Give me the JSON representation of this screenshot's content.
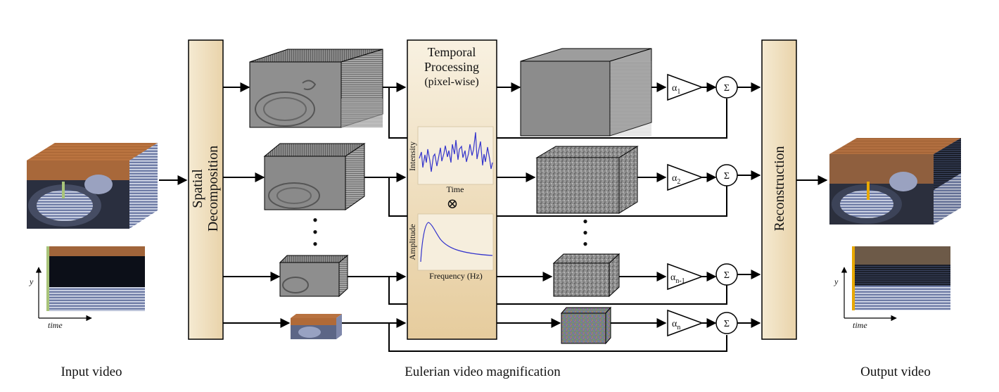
{
  "captions": {
    "input": "Input video",
    "middle": "Eulerian video magnification",
    "output": "Output video"
  },
  "blocks": {
    "spatial_line1": "Spatial",
    "spatial_line2": "Decomposition",
    "temporal_line1": "Temporal",
    "temporal_line2": "Processing",
    "temporal_line3": "(pixel-wise)",
    "reconstruction": "Reconstruction"
  },
  "plots": {
    "intensity": {
      "ylabel": "Intensity",
      "xlabel": "Time"
    },
    "amplitude": {
      "ylabel": "Amplitude",
      "xlabel": "Frequency (Hz)"
    },
    "multiply_symbol": "⊗"
  },
  "axes": {
    "y": "y",
    "time": "time"
  },
  "amplifiers": [
    {
      "base": "α",
      "sub": "1"
    },
    {
      "base": "α",
      "sub": "2"
    },
    {
      "base": "α",
      "sub": "n-1"
    },
    {
      "base": "α",
      "sub": "n"
    }
  ],
  "sum_symbol": "Σ",
  "ellipsis": "•",
  "colors": {
    "block_fill_top": "#f7efdd",
    "block_fill_bottom": "#e7cfa2",
    "plot_line": "#3333cc",
    "wood": "#b06a38",
    "metal": "#8d96b8",
    "marker_input": "#a8c47a",
    "marker_output": "#e8a800"
  }
}
